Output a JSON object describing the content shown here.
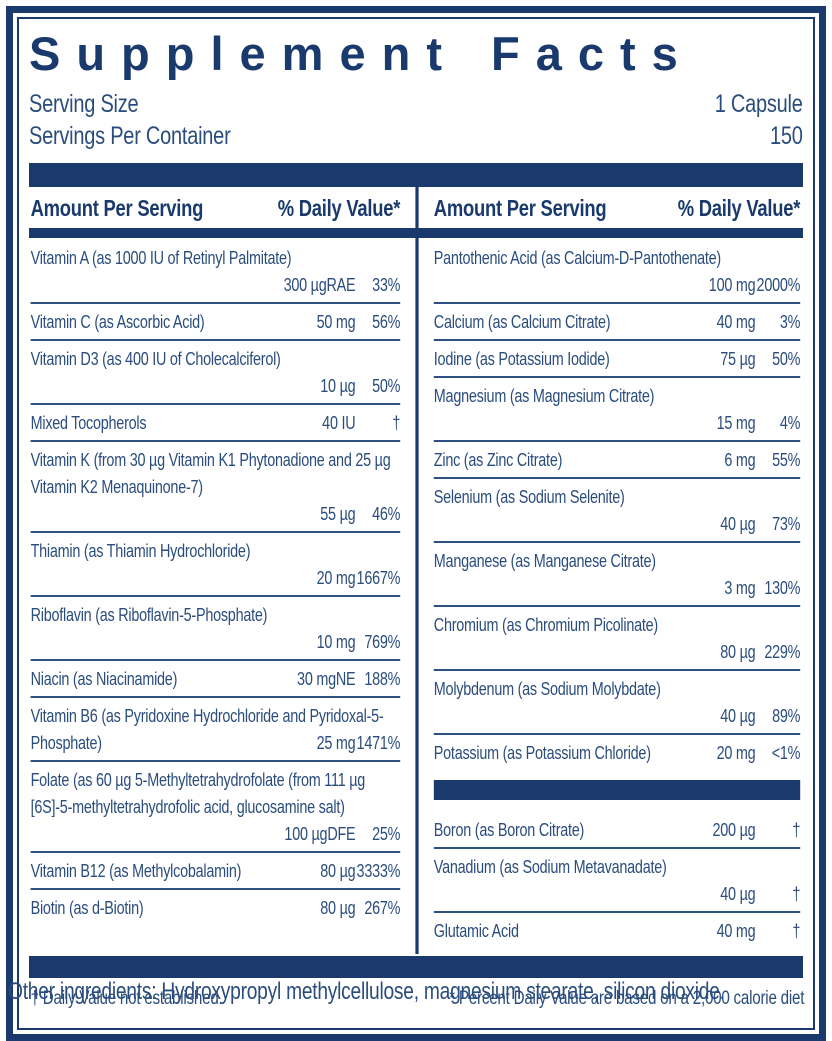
{
  "colors": {
    "navy": "#1a3a6d",
    "body_text": "#2b4d7d"
  },
  "header": {
    "title": "Supplement Facts",
    "serving_size_label": "Serving Size",
    "serving_size_value": "1 Capsule",
    "servings_per_container_label": "Servings Per Container",
    "servings_per_container_value": "150"
  },
  "table": {
    "amount_header": "Amount Per Serving",
    "dv_header": "% Daily Value*",
    "columns": [
      {
        "side": "left",
        "rows": [
          {
            "name": "Vitamin A (as 1000 IU of Retinyl Palmitate)",
            "amount": "300 µgRAE",
            "dv": "33%",
            "stacked": true
          },
          {
            "name": "Vitamin C (as Ascorbic Acid)",
            "amount": "50 mg",
            "dv": "56%"
          },
          {
            "name": "Vitamin D3 (as 400 IU of Cholecalciferol)",
            "amount": "10 µg",
            "dv": "50%",
            "stacked": true
          },
          {
            "name": "Mixed Tocopherols",
            "amount": "40 IU",
            "dv": "†"
          },
          {
            "name": "Vitamin K (from 30 µg Vitamin K1 Phytonadione and 25 µg Vitamin K2 Menaquinone-7)",
            "amount": "55 µg",
            "dv": "46%",
            "stacked": true
          },
          {
            "name": "Thiamin (as Thiamin Hydrochloride)",
            "amount": "20 mg",
            "dv": "1667%",
            "stacked": true
          },
          {
            "name": "Riboflavin (as Riboflavin-5-Phosphate)",
            "amount": "10 mg",
            "dv": "769%",
            "stacked": true
          },
          {
            "name": "Niacin (as Niacinamide)",
            "amount": "30 mgNE",
            "dv": "188%"
          },
          {
            "name": "Vitamin B6 (as Pyridoxine Hydrochloride and Pyridoxal-5-Phosphate)",
            "amount": "25 mg",
            "dv": "1471%"
          },
          {
            "name": "Folate (as 60 µg 5-Methyltetrahydrofolate (from 111 µg [6S]-5-methyltetrahydrofolic acid, glucosamine salt)",
            "amount": "100 µgDFE",
            "dv": "25%",
            "stacked": true
          },
          {
            "name": "Vitamin B12 (as Methylcobalamin)",
            "amount": "80 µg",
            "dv": "3333%"
          },
          {
            "name": "Biotin (as d-Biotin)",
            "amount": "80 µg",
            "dv": "267%",
            "underline": false
          }
        ]
      },
      {
        "side": "right",
        "rows": [
          {
            "name": "Pantothenic Acid (as Calcium-D-Pantothenate)",
            "amount": "100 mg",
            "dv": "2000%",
            "stacked": true
          },
          {
            "name": "Calcium (as Calcium Citrate)",
            "amount": "40 mg",
            "dv": "3%"
          },
          {
            "name": "Iodine (as Potassium Iodide)",
            "amount": "75 µg",
            "dv": "50%"
          },
          {
            "name": "Magnesium (as Magnesium Citrate)",
            "amount": "15 mg",
            "dv": "4%",
            "stacked": true
          },
          {
            "name": "Zinc (as Zinc Citrate)",
            "amount": "6 mg",
            "dv": "55%"
          },
          {
            "name": "Selenium (as Sodium Selenite)",
            "amount": "40 µg",
            "dv": "73%",
            "stacked": true
          },
          {
            "name": "Manganese (as Manganese Citrate)",
            "amount": "3 mg",
            "dv": "130%",
            "stacked": true
          },
          {
            "name": "Chromium (as Chromium Picolinate)",
            "amount": "80 µg",
            "dv": "229%",
            "stacked": true
          },
          {
            "name": "Molybdenum (as Sodium Molybdate)",
            "amount": "40 µg",
            "dv": "89%",
            "stacked": true
          },
          {
            "name": "Potassium (as Potassium Chloride)",
            "amount": "20 mg",
            "dv": "<1%",
            "underline": false
          },
          {
            "bar": true
          },
          {
            "name": "Boron (as Boron Citrate)",
            "amount": "200 µg",
            "dv": "†"
          },
          {
            "name": "Vanadium (as Sodium Metavanadate)",
            "amount": "40 µg",
            "dv": "†",
            "stacked": true
          },
          {
            "name": "Glutamic Acid",
            "amount": "40 mg",
            "dv": "†",
            "underline": false
          }
        ]
      }
    ]
  },
  "footnotes": {
    "dagger": "† Daily Value not established.",
    "asterisk": "* Percent Daily Value are based on a 2,000 calorie diet"
  },
  "other_ingredients": "Other ingredients: Hydroxypropyl methylcellulose, magnesium stearate, silicon dioxide."
}
